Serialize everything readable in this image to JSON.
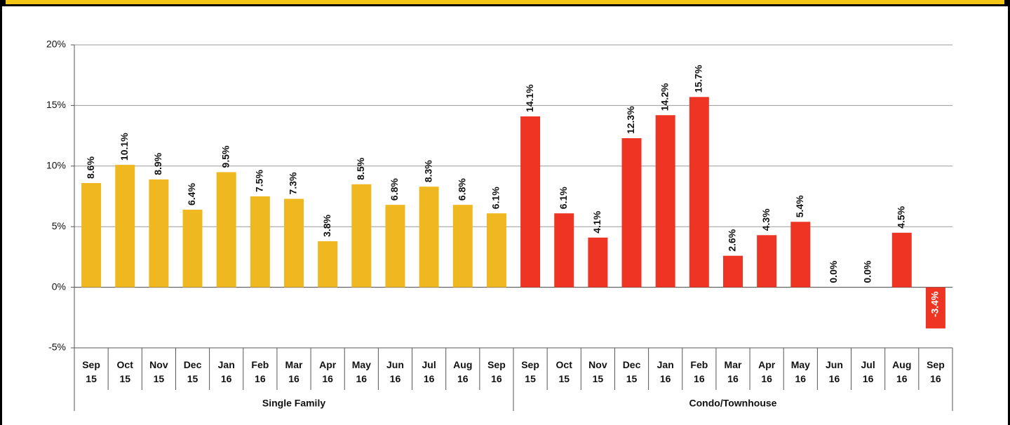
{
  "chart_data": {
    "type": "bar",
    "categories": [
      "Sep 15",
      "Oct 15",
      "Nov 15",
      "Dec 15",
      "Jan 16",
      "Feb 16",
      "Mar 16",
      "Apr 16",
      "May 16",
      "Jun 16",
      "Jul 16",
      "Aug 16",
      "Sep 16",
      "Sep 15",
      "Oct 15",
      "Nov 15",
      "Dec 15",
      "Jan 16",
      "Feb 16",
      "Mar 16",
      "Apr 16",
      "May 16",
      "Jun 16",
      "Jul 16",
      "Aug 16",
      "Sep 16"
    ],
    "series": [
      {
        "name": "Single Family",
        "color": "#f0b820",
        "values": [
          8.6,
          10.1,
          8.9,
          6.4,
          9.5,
          7.5,
          7.3,
          3.8,
          8.5,
          6.8,
          8.3,
          6.8,
          6.1,
          null,
          null,
          null,
          null,
          null,
          null,
          null,
          null,
          null,
          null,
          null,
          null,
          null
        ],
        "value_labels": [
          "8.6%",
          "10.1%",
          "8.9%",
          "6.4%",
          "9.5%",
          "7.5%",
          "7.3%",
          "3.8%",
          "8.5%",
          "6.8%",
          "8.3%",
          "6.8%",
          "6.1%",
          null,
          null,
          null,
          null,
          null,
          null,
          null,
          null,
          null,
          null,
          null,
          null,
          null
        ]
      },
      {
        "name": "Condo/Townhouse",
        "color": "#ee3524",
        "values": [
          null,
          null,
          null,
          null,
          null,
          null,
          null,
          null,
          null,
          null,
          null,
          null,
          null,
          14.1,
          6.1,
          4.1,
          12.3,
          14.2,
          15.7,
          2.6,
          4.3,
          5.4,
          0.0,
          0.0,
          4.5,
          -3.4
        ],
        "value_labels": [
          null,
          null,
          null,
          null,
          null,
          null,
          null,
          null,
          null,
          null,
          null,
          null,
          null,
          "14.1%",
          "6.1%",
          "4.1%",
          "12.3%",
          "14.2%",
          "15.7%",
          "2.6%",
          "4.3%",
          "5.4%",
          "0.0%",
          "0.0%",
          "4.5%",
          "-3.4%"
        ]
      }
    ],
    "ylim": [
      -5,
      20
    ],
    "yticks": [
      {
        "value": -5,
        "label": "-5%"
      },
      {
        "value": 0,
        "label": "0%"
      },
      {
        "value": 5,
        "label": "5%"
      },
      {
        "value": 10,
        "label": "10%"
      },
      {
        "value": 15,
        "label": "15%"
      },
      {
        "value": 20,
        "label": "20%"
      }
    ],
    "grid": true
  }
}
